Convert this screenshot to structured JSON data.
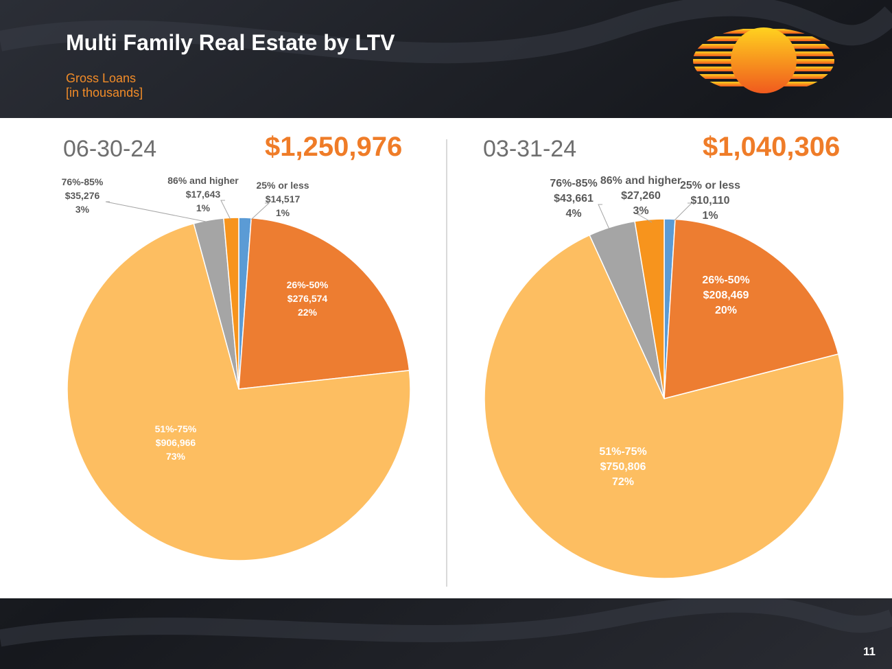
{
  "header": {
    "title": "Multi Family Real Estate by LTV",
    "subtitle_line1": "Gross Loans",
    "subtitle_line2": "[in thousands]"
  },
  "page_number": "11",
  "colors": {
    "orange_dark": "#ED7D31",
    "orange_light": "#FDBE61",
    "gray": "#A5A5A5",
    "orange_mid": "#F7941D",
    "blue": "#5B9BD5",
    "accent_text": "#EF7C28"
  },
  "chart_data": [
    {
      "type": "pie",
      "title": "06-30-24",
      "total": "$1,250,976",
      "categories": [
        "25% or less",
        "26%-50%",
        "51%-75%",
        "76%-85%",
        "86% and higher"
      ],
      "values": [
        14517,
        276574,
        906966,
        35276,
        17643
      ],
      "value_labels": [
        "$14,517",
        "$276,574",
        "$906,966",
        "$35,276",
        "$17,643"
      ],
      "percent_labels": [
        "1%",
        "22%",
        "73%",
        "3%",
        "1%"
      ]
    },
    {
      "type": "pie",
      "title": "03-31-24",
      "total": "$1,040,306",
      "categories": [
        "25% or less",
        "26%-50%",
        "51%-75%",
        "76%-85%",
        "86% and higher"
      ],
      "values": [
        10110,
        208469,
        750806,
        43661,
        27260
      ],
      "value_labels": [
        "$10,110",
        "$208,469",
        "$750,806",
        "$43,661",
        "$27,260"
      ],
      "percent_labels": [
        "1%",
        "20%",
        "72%",
        "4%",
        "3%"
      ]
    }
  ]
}
